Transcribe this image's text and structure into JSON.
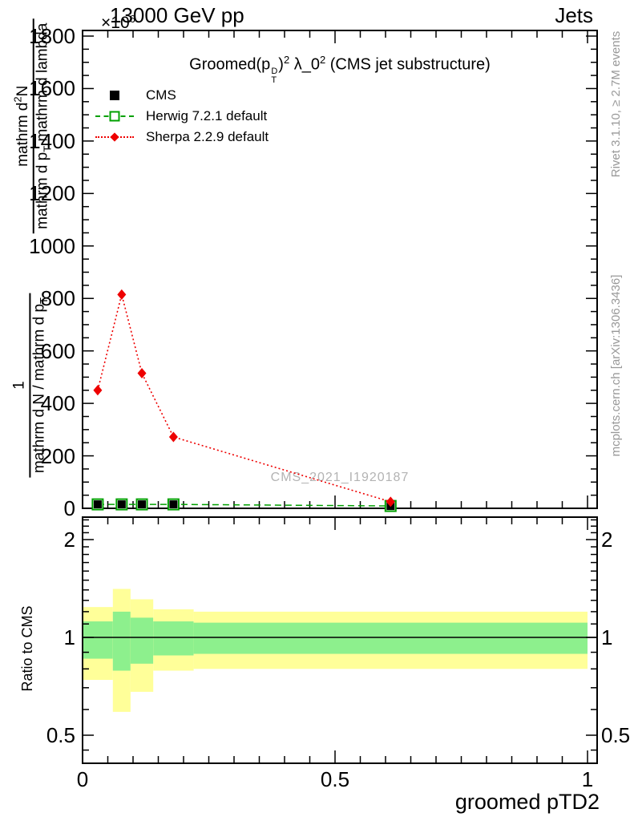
{
  "header": {
    "collision": "13000 GeV pp",
    "analysis": "Jets"
  },
  "scale_label": {
    "base": "×10",
    "exp": "6"
  },
  "main_panel": {
    "title": {
      "p1": "Groomed(p",
      "p_sup": "D",
      "p_sub": "T",
      "p2": ")",
      "sup2": "2",
      "p3": " λ_0",
      "sup3": "2",
      "p4": " (CMS jet substructure)"
    },
    "watermark": "CMS_2021_I1920187"
  },
  "legend": {
    "items": [
      {
        "label": "CMS",
        "marker": "filled-square",
        "color": "#000000"
      },
      {
        "label": "Herwig 7.2.1 default",
        "marker": "open-square",
        "line": "dashed",
        "color": "#00a000"
      },
      {
        "label": "Sherpa 2.2.9 default",
        "marker": "diamond",
        "line": "dotted",
        "color": "#ee0000"
      }
    ]
  },
  "y_axis_label": {
    "frac1_num": "1",
    "frac1_den_a": "mathrm d N / mathrm d p",
    "frac1_den_sub": "T",
    "frac2_num_a": "mathrm d",
    "frac2_num_sup": "2",
    "frac2_num_b": "N",
    "frac2_den_a": "mathrm d p",
    "frac2_den_sub": "T",
    "frac2_den_b": " mathrm d lambda"
  },
  "ratio_panel": {
    "ylabel": "Ratio to CMS"
  },
  "x_axis": {
    "label": "groomed pTD2"
  },
  "right_margin": {
    "top": "Rivet 3.1.10, ≥ 2.7M events",
    "bottom": "mcplots.cern.ch [arXiv:1306.3436]"
  },
  "colors": {
    "cms": "#000000",
    "herwig": "#00a000",
    "sherpa": "#ee0000",
    "band_yellow": "#ffff99",
    "band_green": "#8df08d",
    "gray_text": "#999999",
    "watermark": "#b3b3b3",
    "frame": "#000000"
  },
  "chart_data": {
    "type": "line",
    "title": "Groomed (p_T^D)^2 lambda_0^2 (CMS jet substructure)",
    "xlabel": "groomed pTD2",
    "ylabel": "1/(dN/dp_T) d^2N/(dp_T dlambda)",
    "y_unit": "1e6",
    "xlim": [
      0,
      1.019
    ],
    "ylim": [
      0,
      1822
    ],
    "x_major_ticks": [
      0,
      0.5,
      1
    ],
    "x_tick_labels": [
      "0",
      "0.5",
      "1"
    ],
    "x_minor_step": 0.05,
    "y_major_ticks": [
      0,
      200,
      400,
      600,
      800,
      1000,
      1200,
      1400,
      1600,
      1800
    ],
    "y_tick_labels": [
      "0",
      "200",
      "400",
      "600",
      "800",
      "1000",
      "1200",
      "1400",
      "1600",
      "1800"
    ],
    "y_minor_step": 50,
    "grid": false,
    "legend_position": "top-left",
    "series": [
      {
        "name": "CMS",
        "marker": "filled-square",
        "color": "#000000",
        "x": [
          0.03,
          0.0775,
          0.1175,
          0.18,
          0.61
        ],
        "y": [
          15,
          15,
          15,
          15,
          9
        ]
      },
      {
        "name": "Herwig 7.2.1 default",
        "marker": "open-square",
        "line": "dashed",
        "color": "#00a000",
        "x": [
          0.03,
          0.0775,
          0.1175,
          0.18,
          0.61
        ],
        "y": [
          15,
          15,
          15,
          15,
          9
        ]
      },
      {
        "name": "Sherpa 2.2.9 default",
        "marker": "diamond",
        "line": "dotted",
        "color": "#ee0000",
        "x": [
          0.03,
          0.0775,
          0.1175,
          0.18,
          0.61
        ],
        "y": [
          450,
          815,
          515,
          272,
          25
        ]
      }
    ],
    "ratio": {
      "ylabel": "Ratio to CMS",
      "scale": "log",
      "ylim": [
        0.41,
        2.35
      ],
      "reference": 1.0,
      "y_major_ticks": [
        2,
        1,
        0.5
      ],
      "y_tick_labels": [
        "2",
        "1",
        "0.5"
      ],
      "y_minor_ticks": [
        0.45,
        0.6,
        0.7,
        0.8,
        0.9,
        1.1,
        1.2,
        1.3,
        1.4,
        1.5,
        1.6,
        1.7,
        1.8,
        1.9,
        2.1,
        2.2,
        2.3
      ],
      "bin_edges": [
        0,
        0.06,
        0.095,
        0.14,
        0.22,
        1.0
      ],
      "yellow_band": {
        "lo": [
          0.74,
          0.59,
          0.68,
          0.79,
          0.8
        ],
        "hi": [
          1.24,
          1.41,
          1.31,
          1.22,
          1.2
        ]
      },
      "green_band": {
        "lo": [
          0.86,
          0.79,
          0.83,
          0.88,
          0.89
        ],
        "hi": [
          1.12,
          1.2,
          1.15,
          1.12,
          1.11
        ]
      }
    }
  }
}
